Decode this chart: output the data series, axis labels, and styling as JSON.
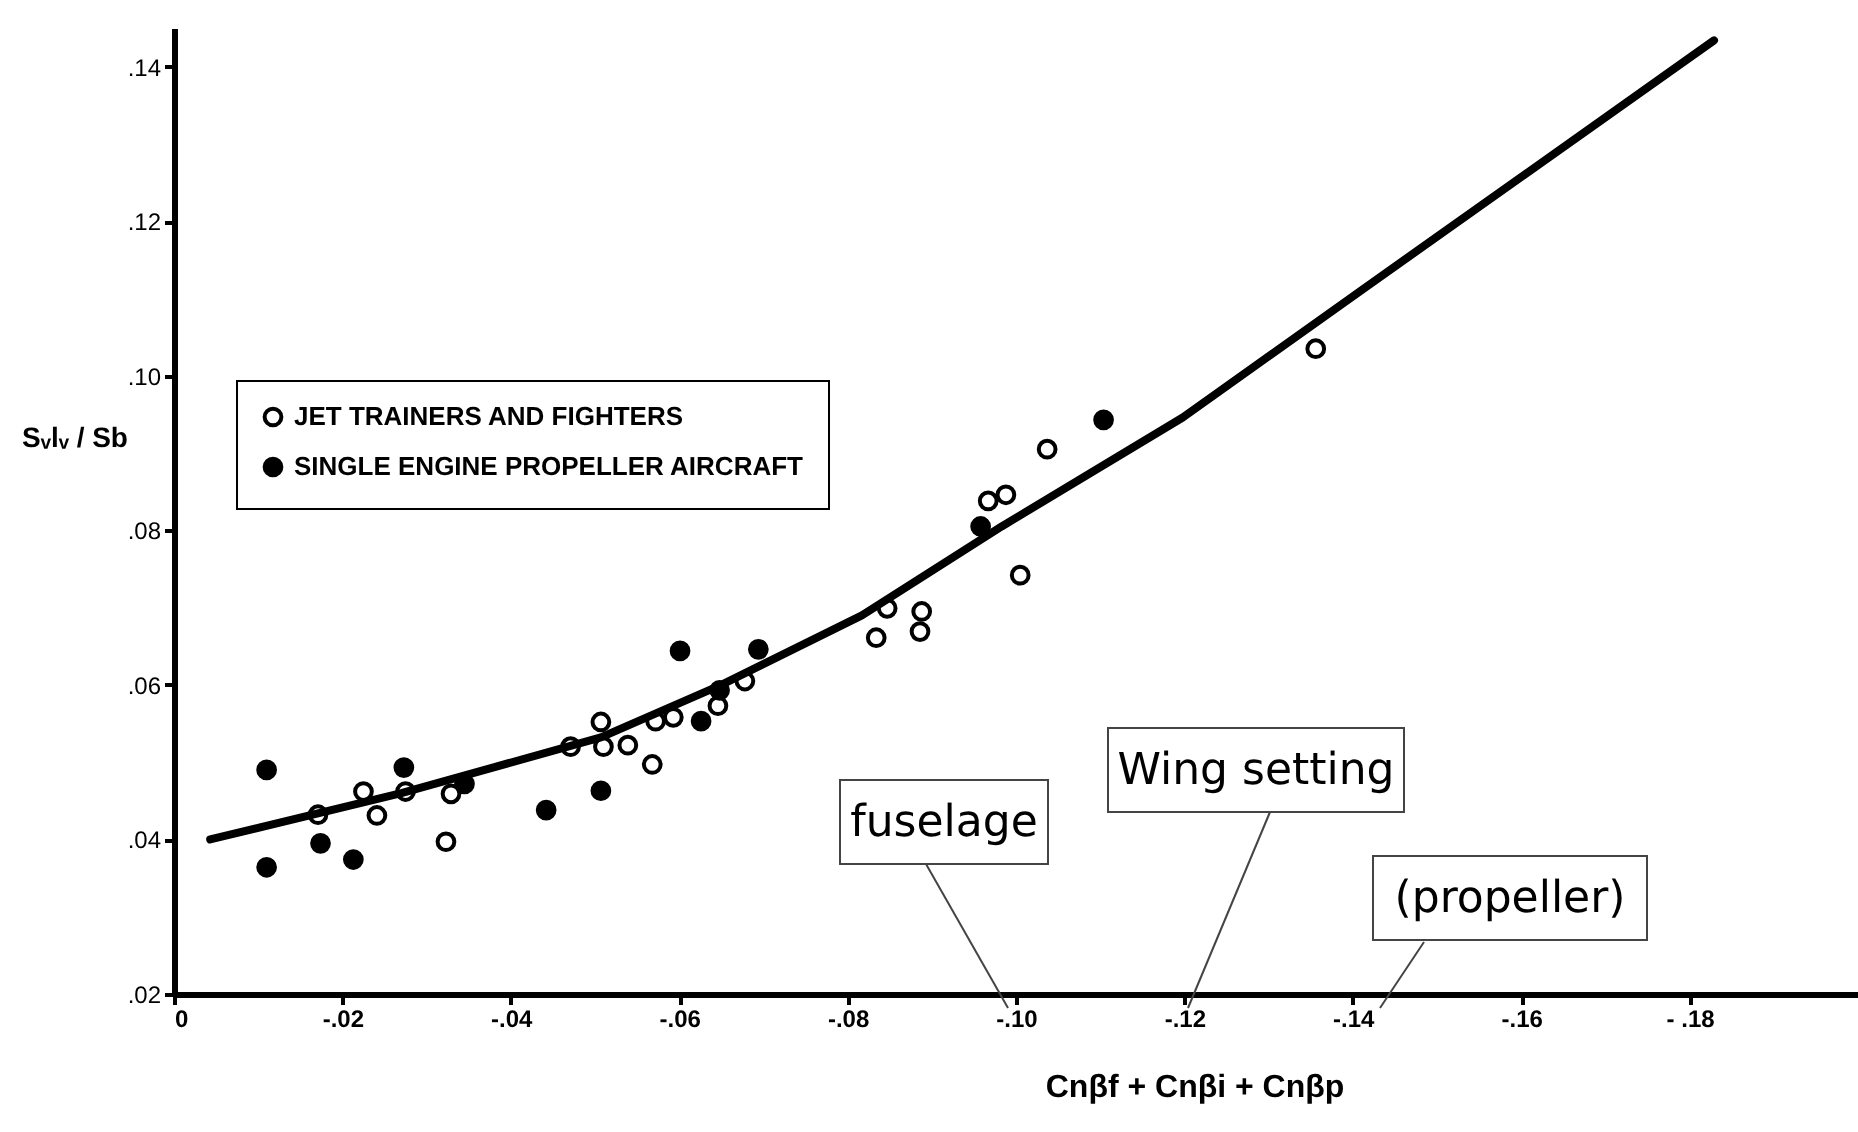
{
  "chart_data": {
    "type": "scatter",
    "xlabel": "Cnβf + Cnβi + Cnβp",
    "ylabel": "Sᵥlᵥ / Sb",
    "xlim": [
      0,
      -0.2
    ],
    "ylim": [
      0.02,
      0.145
    ],
    "xticks": [
      {
        "value": 0,
        "label": "0"
      },
      {
        "value": -0.02,
        "label": "-.02"
      },
      {
        "value": -0.04,
        "label": "-.04"
      },
      {
        "value": -0.06,
        "label": "-.06"
      },
      {
        "value": -0.08,
        "label": "-.08"
      },
      {
        "value": -0.1,
        "label": "-.10"
      },
      {
        "value": -0.12,
        "label": "-.12"
      },
      {
        "value": -0.14,
        "label": "-.14"
      },
      {
        "value": -0.16,
        "label": "-.16"
      },
      {
        "value": -0.18,
        "label": "- .18"
      }
    ],
    "yticks": [
      {
        "value": 0.02,
        "label": ".02"
      },
      {
        "value": 0.04,
        "label": ".04"
      },
      {
        "value": 0.06,
        "label": ".06"
      },
      {
        "value": 0.08,
        "label": ".08"
      },
      {
        "value": 0.1,
        "label": ".10"
      },
      {
        "value": 0.12,
        "label": ".12"
      },
      {
        "value": 0.14,
        "label": ".14"
      }
    ],
    "grid": false,
    "legend": "top left",
    "marker": "circle",
    "series": [
      {
        "name": "JET TRAINERS AND FIGHTERS",
        "color": "#ffffff",
        "x": [
          -0.0171,
          -0.0225,
          -0.0241,
          -0.0275,
          -0.0323,
          -0.0329,
          -0.0471,
          -0.0507,
          -0.051,
          -0.0539,
          -0.0568,
          -0.0572,
          -0.0593,
          -0.0646,
          -0.0678,
          -0.0847,
          -0.0834,
          -0.0888,
          -0.0886,
          -0.0967,
          -0.0988,
          -0.1005,
          -0.1037,
          -0.1356
        ],
        "values": [
          0.0432,
          0.0462,
          0.0431,
          0.0462,
          0.0397,
          0.0459,
          0.052,
          0.0552,
          0.052,
          0.0522,
          0.0497,
          0.0553,
          0.0558,
          0.0573,
          0.0605,
          0.0699,
          0.0661,
          0.0695,
          0.0669,
          0.0838,
          0.0846,
          0.0742,
          0.0905,
          0.1035
        ]
      },
      {
        "name": "SINGLE ENGINE PROPELLER AIRCRAFT",
        "color": "#000000",
        "x": [
          -0.011,
          -0.011,
          -0.0174,
          -0.0213,
          -0.0273,
          -0.0345,
          -0.0442,
          -0.0507,
          -0.0601,
          -0.0626,
          -0.0648,
          -0.0694,
          -0.0958,
          -0.1104
        ],
        "values": [
          0.049,
          0.0364,
          0.0395,
          0.0374,
          0.0493,
          0.0472,
          0.0438,
          0.0463,
          0.0644,
          0.0553,
          0.0593,
          0.0646,
          0.0805,
          0.0943
        ]
      },
      {
        "type": "line",
        "color": "#000000",
        "line_style": "solid",
        "marker": "none",
        "x": [
          -0.0043,
          -0.027,
          -0.0507,
          -0.065,
          -0.0817,
          -0.0983,
          -0.1198,
          -0.1412,
          -0.1829
        ],
        "values": [
          0.04,
          0.046,
          0.0532,
          0.06,
          0.069,
          0.0805,
          0.0946,
          0.1112,
          0.1434
        ]
      }
    ],
    "annotations": [
      "fuselage",
      "Wing setting",
      "(propeller)"
    ]
  }
}
